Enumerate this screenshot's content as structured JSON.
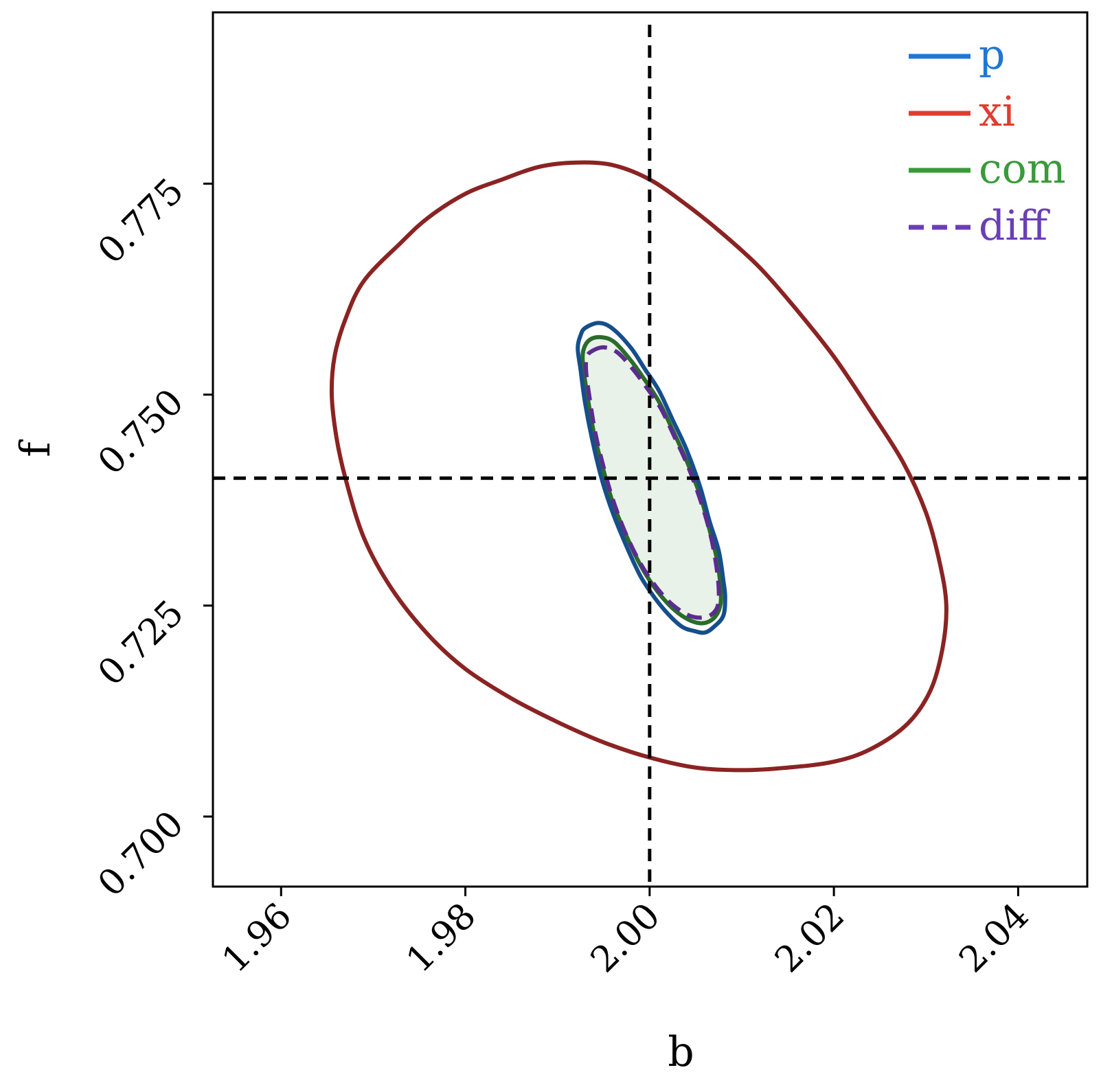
{
  "chart_data": {
    "type": "contour",
    "title": "",
    "xlabel": "b",
    "ylabel": "f",
    "xlim": [
      1.9526,
      2.0475
    ],
    "ylim": [
      0.6917,
      0.7953
    ],
    "xticks": [
      1.96,
      1.98,
      2.0,
      2.02,
      2.04
    ],
    "xtick_labels": [
      "1.96",
      "1.98",
      "2.00",
      "2.02",
      "2.04"
    ],
    "yticks": [
      0.7,
      0.725,
      0.75,
      0.775
    ],
    "ytick_labels": [
      "0.700",
      "0.725",
      "0.750",
      "0.775"
    ],
    "grid": false,
    "legend": {
      "placement": "top-right"
    },
    "reference_lines": {
      "x": 2.0,
      "y": 0.7401,
      "style": "dashed",
      "color": "#000000"
    },
    "series": [
      {
        "name": "p",
        "color": "#1f77d4",
        "line_color": "#164e8c",
        "dashed": false,
        "filled": false,
        "contour": [
          [
            1.993,
            0.7579
          ],
          [
            1.9945,
            0.7585
          ],
          [
            1.996,
            0.7578
          ],
          [
            1.998,
            0.7555
          ],
          [
            1.9995,
            0.753
          ],
          [
            2.001,
            0.7505
          ],
          [
            2.0025,
            0.747
          ],
          [
            2.004,
            0.7435
          ],
          [
            2.0055,
            0.739
          ],
          [
            2.0065,
            0.735
          ],
          [
            2.0075,
            0.7315
          ],
          [
            2.008,
            0.728
          ],
          [
            2.0082,
            0.726
          ],
          [
            2.008,
            0.7238
          ],
          [
            2.007,
            0.7225
          ],
          [
            2.006,
            0.7218
          ],
          [
            2.0048,
            0.722
          ],
          [
            2.0035,
            0.7225
          ],
          [
            2.002,
            0.724
          ],
          [
            2.0005,
            0.726
          ],
          [
            1.999,
            0.7285
          ],
          [
            1.9975,
            0.732
          ],
          [
            1.996,
            0.736
          ],
          [
            1.9948,
            0.74
          ],
          [
            1.9938,
            0.7445
          ],
          [
            1.993,
            0.749
          ],
          [
            1.9925,
            0.753
          ],
          [
            1.9922,
            0.7555
          ],
          [
            1.9925,
            0.757
          ]
        ]
      },
      {
        "name": "xi",
        "color": "#e03c31",
        "line_color": "#8b2323",
        "dashed": false,
        "filled": false,
        "contour": [
          [
            1.973,
            0.768
          ],
          [
            1.976,
            0.771
          ],
          [
            1.98,
            0.7738
          ],
          [
            1.984,
            0.7755
          ],
          [
            1.988,
            0.777
          ],
          [
            1.992,
            0.7775
          ],
          [
            1.996,
            0.7772
          ],
          [
            2.0,
            0.7755
          ],
          [
            2.004,
            0.7725
          ],
          [
            2.008,
            0.769
          ],
          [
            2.012,
            0.765
          ],
          [
            2.016,
            0.76
          ],
          [
            2.02,
            0.7545
          ],
          [
            2.024,
            0.748
          ],
          [
            2.0275,
            0.742
          ],
          [
            2.03,
            0.736
          ],
          [
            2.0315,
            0.73
          ],
          [
            2.0322,
            0.725
          ],
          [
            2.0318,
            0.72
          ],
          [
            2.0305,
            0.715
          ],
          [
            2.028,
            0.711
          ],
          [
            2.024,
            0.708
          ],
          [
            2.02,
            0.7065
          ],
          [
            2.015,
            0.7058
          ],
          [
            2.01,
            0.7055
          ],
          [
            2.005,
            0.7058
          ],
          [
            2.0,
            0.707
          ],
          [
            1.995,
            0.7088
          ],
          [
            1.99,
            0.7112
          ],
          [
            1.985,
            0.714
          ],
          [
            1.98,
            0.7175
          ],
          [
            1.976,
            0.7215
          ],
          [
            1.972,
            0.727
          ],
          [
            1.969,
            0.733
          ],
          [
            1.967,
            0.74
          ],
          [
            1.966,
            0.745
          ],
          [
            1.9655,
            0.75
          ],
          [
            1.9658,
            0.7545
          ],
          [
            1.967,
            0.759
          ],
          [
            1.969,
            0.7635
          ]
        ]
      },
      {
        "name": "com",
        "color": "#3a9a3a",
        "line_color": "#2b6b2b",
        "dashed": false,
        "filled": true,
        "fill_color": "#e8f2e8",
        "contour": [
          [
            1.9935,
            0.7565
          ],
          [
            1.9948,
            0.7568
          ],
          [
            1.9962,
            0.7562
          ],
          [
            1.998,
            0.754
          ],
          [
            1.9995,
            0.7517
          ],
          [
            2.001,
            0.7492
          ],
          [
            2.0025,
            0.7458
          ],
          [
            2.004,
            0.7422
          ],
          [
            2.0055,
            0.738
          ],
          [
            2.0065,
            0.734
          ],
          [
            2.0073,
            0.7305
          ],
          [
            2.0077,
            0.7272
          ],
          [
            2.0077,
            0.7252
          ],
          [
            2.0072,
            0.7238
          ],
          [
            2.0062,
            0.723
          ],
          [
            2.005,
            0.723
          ],
          [
            2.0035,
            0.7238
          ],
          [
            2.002,
            0.7252
          ],
          [
            2.0005,
            0.7272
          ],
          [
            1.999,
            0.7298
          ],
          [
            1.9975,
            0.7332
          ],
          [
            1.996,
            0.7372
          ],
          [
            1.995,
            0.741
          ],
          [
            1.994,
            0.7452
          ],
          [
            1.9933,
            0.7495
          ],
          [
            1.9928,
            0.7532
          ],
          [
            1.9928,
            0.7552
          ]
        ]
      },
      {
        "name": "diff",
        "color": "#6a3fb5",
        "line_color": "#5b2c8f",
        "dashed": true,
        "filled": false,
        "contour": [
          [
            1.9938,
            0.7552
          ],
          [
            1.995,
            0.7556
          ],
          [
            1.9965,
            0.755
          ],
          [
            1.9982,
            0.753
          ],
          [
            1.9997,
            0.7508
          ],
          [
            2.0012,
            0.7484
          ],
          [
            2.0027,
            0.745
          ],
          [
            2.0042,
            0.7414
          ],
          [
            2.0056,
            0.7372
          ],
          [
            2.0066,
            0.7334
          ],
          [
            2.0072,
            0.73
          ],
          [
            2.0075,
            0.727
          ],
          [
            2.0074,
            0.725
          ],
          [
            2.0068,
            0.724
          ],
          [
            2.0058,
            0.7236
          ],
          [
            2.0046,
            0.7237
          ],
          [
            2.0032,
            0.7245
          ],
          [
            2.0018,
            0.7258
          ],
          [
            2.0003,
            0.7278
          ],
          [
            1.9988,
            0.7304
          ],
          [
            1.9973,
            0.7338
          ],
          [
            1.996,
            0.7376
          ],
          [
            1.995,
            0.7414
          ],
          [
            1.9941,
            0.7455
          ],
          [
            1.9935,
            0.7495
          ],
          [
            1.9931,
            0.7528
          ],
          [
            1.9932,
            0.7545
          ]
        ]
      }
    ]
  }
}
